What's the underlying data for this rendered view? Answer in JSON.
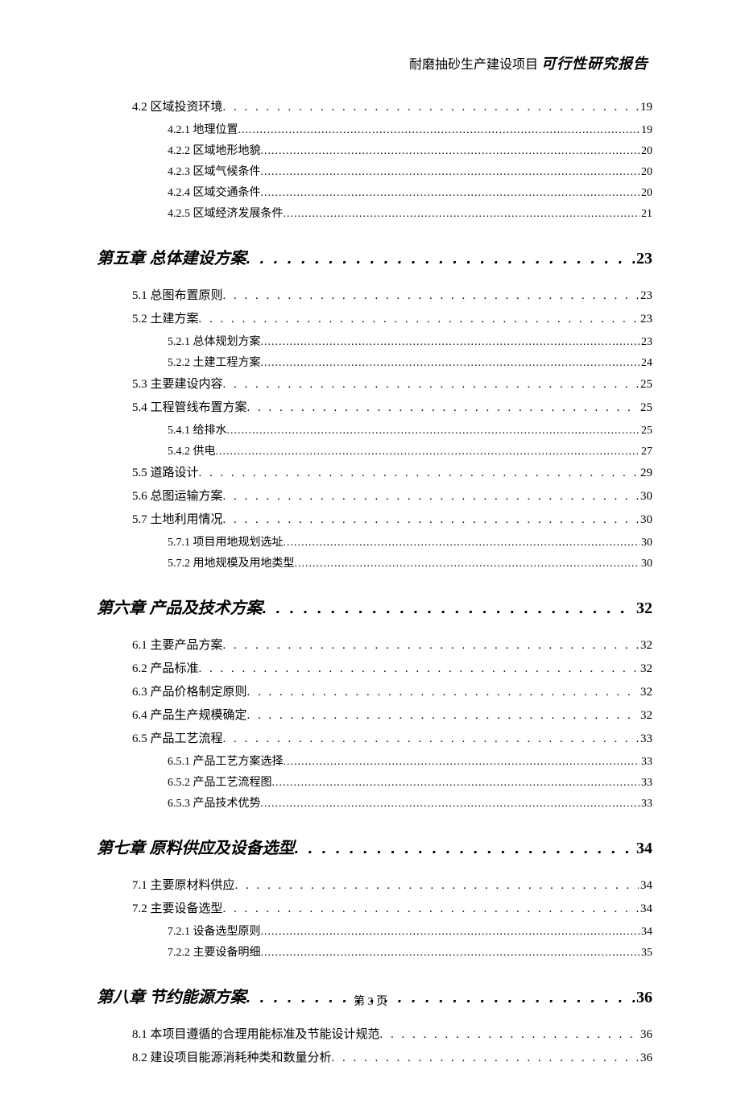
{
  "header": {
    "prefix": "耐磨抽砂生产建设项目 ",
    "title": "可行性研究报告"
  },
  "footer": {
    "text": "第 3 页"
  },
  "toc": {
    "pre_sections": [
      {
        "level": "section",
        "label": "4.2 区域投资环境",
        "page": "19"
      },
      {
        "level": "sub",
        "label": "4.2.1 地理位置",
        "page": "19"
      },
      {
        "level": "sub",
        "label": "4.2.2 区域地形地貌",
        "page": "20"
      },
      {
        "level": "sub",
        "label": "4.2.3 区域气候条件",
        "page": "20"
      },
      {
        "level": "sub",
        "label": "4.2.4 区域交通条件",
        "page": "20"
      },
      {
        "level": "sub",
        "label": "4.2.5 区域经济发展条件",
        "page": "21"
      }
    ],
    "chapters": [
      {
        "title": "第五章 总体建设方案",
        "page": "23",
        "items": [
          {
            "level": "section",
            "label": "5.1 总图布置原则",
            "page": "23"
          },
          {
            "level": "section",
            "label": "5.2 土建方案",
            "page": "23"
          },
          {
            "level": "sub",
            "label": "5.2.1 总体规划方案",
            "page": "23"
          },
          {
            "level": "sub",
            "label": "5.2.2 土建工程方案",
            "page": "24"
          },
          {
            "level": "section",
            "label": "5.3 主要建设内容",
            "page": "25"
          },
          {
            "level": "section",
            "label": "5.4 工程管线布置方案",
            "page": "25"
          },
          {
            "level": "sub",
            "label": "5.4.1 给排水",
            "page": "25"
          },
          {
            "level": "sub",
            "label": "5.4.2 供电",
            "page": "27"
          },
          {
            "level": "section",
            "label": "5.5 道路设计",
            "page": "29"
          },
          {
            "level": "section",
            "label": "5.6 总图运输方案",
            "page": "30"
          },
          {
            "level": "section",
            "label": "5.7 土地利用情况",
            "page": "30"
          },
          {
            "level": "sub",
            "label": "5.7.1 项目用地规划选址",
            "page": "30"
          },
          {
            "level": "sub",
            "label": "5.7.2 用地规模及用地类型",
            "page": "30"
          }
        ]
      },
      {
        "title": "第六章 产品及技术方案",
        "page": "32",
        "items": [
          {
            "level": "section",
            "label": "6.1 主要产品方案",
            "page": "32"
          },
          {
            "level": "section",
            "label": "6.2 产品标准",
            "page": "32"
          },
          {
            "level": "section",
            "label": "6.3 产品价格制定原则",
            "page": "32"
          },
          {
            "level": "section",
            "label": "6.4 产品生产规模确定",
            "page": "32"
          },
          {
            "level": "section",
            "label": "6.5 产品工艺流程",
            "page": "33"
          },
          {
            "level": "sub",
            "label": "6.5.1 产品工艺方案选择",
            "page": "33"
          },
          {
            "level": "sub",
            "label": "6.5.2 产品工艺流程图",
            "page": "33"
          },
          {
            "level": "sub",
            "label": "6.5.3 产品技术优势",
            "page": "33"
          }
        ]
      },
      {
        "title": "第七章 原料供应及设备选型",
        "page": "34",
        "items": [
          {
            "level": "section",
            "label": "7.1 主要原材料供应",
            "page": "34"
          },
          {
            "level": "section",
            "label": "7.2 主要设备选型",
            "page": "34"
          },
          {
            "level": "sub",
            "label": "7.2.1 设备选型原则",
            "page": "34"
          },
          {
            "level": "sub",
            "label": "7.2.2 主要设备明细",
            "page": "35"
          }
        ]
      },
      {
        "title": "第八章 节约能源方案",
        "page": "36",
        "items": [
          {
            "level": "section",
            "label": "8.1 本项目遵循的合理用能标准及节能设计规范",
            "page": "36"
          },
          {
            "level": "section",
            "label": "8.2 建设项目能源消耗种类和数量分析",
            "page": "36"
          }
        ]
      }
    ]
  }
}
